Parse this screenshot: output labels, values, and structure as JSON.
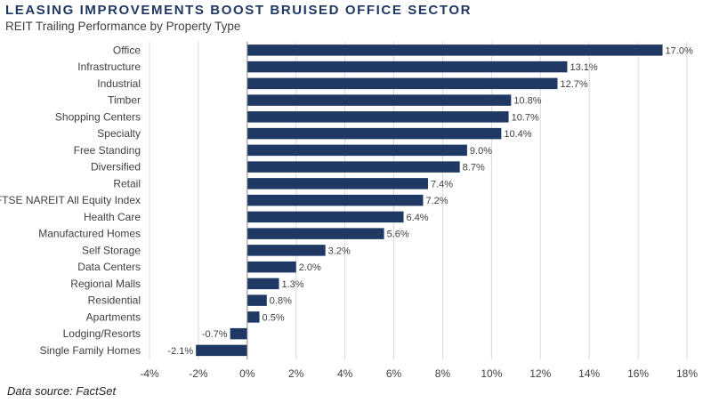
{
  "header": {
    "title": "LEASING IMPROVEMENTS BOOST BRUISED OFFICE SECTOR",
    "subtitle": "REIT Trailing Performance by Property Type"
  },
  "footer": {
    "source": "Data source: FactSet"
  },
  "colors": {
    "bar": "#1f3864",
    "grid": "#d9d9d9",
    "axis": "#8c8c8c"
  },
  "chart_data": {
    "type": "bar",
    "orientation": "horizontal",
    "categories": [
      "Office",
      "Infrastructure",
      "Industrial",
      "Timber",
      "Shopping Centers",
      "Specialty",
      "Free Standing",
      "Diversified",
      "Retail",
      "FTSE NAREIT All Equity Index",
      "Health Care",
      "Manufactured Homes",
      "Self Storage",
      "Data Centers",
      "Regional Malls",
      "Residential",
      "Apartments",
      "Lodging/Resorts",
      "Single Family Homes"
    ],
    "values": [
      17.0,
      13.1,
      12.7,
      10.8,
      10.7,
      10.4,
      9.0,
      8.7,
      7.4,
      7.2,
      6.4,
      5.6,
      3.2,
      2.0,
      1.3,
      0.8,
      0.5,
      -0.7,
      -2.1
    ],
    "data_labels": [
      "17.0%",
      "13.1%",
      "12.7%",
      "10.8%",
      "10.7%",
      "10.4%",
      "9.0%",
      "8.7%",
      "7.4%",
      "7.2%",
      "6.4%",
      "5.6%",
      "3.2%",
      "2.0%",
      "1.3%",
      "0.8%",
      "0.5%",
      "-0.7%",
      "-2.1%"
    ],
    "xlim": [
      -4,
      18
    ],
    "xticks": [
      -4,
      -2,
      0,
      2,
      4,
      6,
      8,
      10,
      12,
      14,
      16,
      18
    ],
    "xtick_labels": [
      "-4%",
      "-2%",
      "0%",
      "2%",
      "4%",
      "6%",
      "8%",
      "10%",
      "12%",
      "14%",
      "16%",
      "18%"
    ],
    "grid": "vertical"
  }
}
